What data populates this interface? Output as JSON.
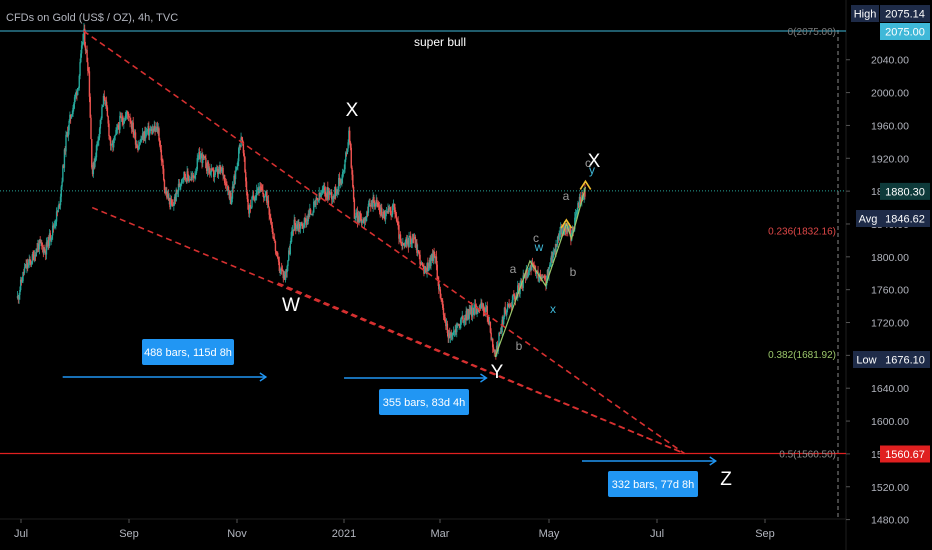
{
  "header": {
    "symbol_title": "CFDs on Gold (US$ / OZ), 4h, TVC"
  },
  "chart_data": {
    "type": "candlestick",
    "y_axis": {
      "ylim": [
        1465,
        2092
      ],
      "ticks": [
        2040,
        2000,
        1960,
        1920,
        1880,
        1840,
        1800,
        1760,
        1720,
        1680,
        1640,
        1600,
        1560,
        1520,
        1480
      ],
      "tick_labels": [
        "2040.00",
        "2000.00",
        "1960.00",
        "1920.00",
        "1880.00",
        "1840.00",
        "1800.00",
        "1760.00",
        "1720.00",
        "1680.00",
        "1640.00",
        "1600.00",
        "1560.00",
        "1520.00",
        "1480.00"
      ]
    },
    "x_axis": {
      "labels": [
        "Jul",
        "Sep",
        "Nov",
        "2021",
        "Mar",
        "May",
        "Jul",
        "Sep"
      ]
    },
    "price_series": [
      [
        "2020-06-29",
        1750
      ],
      [
        "2020-07-03",
        1785
      ],
      [
        "2020-07-07",
        1795
      ],
      [
        "2020-07-11",
        1815
      ],
      [
        "2020-07-15",
        1808
      ],
      [
        "2020-07-19",
        1832
      ],
      [
        "2020-07-23",
        1862
      ],
      [
        "2020-07-27",
        1945
      ],
      [
        "2020-07-30",
        1975
      ],
      [
        "2020-08-03",
        2010
      ],
      [
        "2020-08-06",
        2075
      ],
      [
        "2020-08-09",
        2025
      ],
      [
        "2020-08-11",
        1900
      ],
      [
        "2020-08-14",
        1940
      ],
      [
        "2020-08-18",
        1998
      ],
      [
        "2020-08-22",
        1930
      ],
      [
        "2020-08-27",
        1965
      ],
      [
        "2020-09-01",
        1975
      ],
      [
        "2020-09-06",
        1935
      ],
      [
        "2020-09-11",
        1952
      ],
      [
        "2020-09-18",
        1955
      ],
      [
        "2020-09-22",
        1880
      ],
      [
        "2020-09-26",
        1860
      ],
      [
        "2020-10-02",
        1900
      ],
      [
        "2020-10-08",
        1895
      ],
      [
        "2020-10-12",
        1925
      ],
      [
        "2020-10-19",
        1900
      ],
      [
        "2020-10-25",
        1905
      ],
      [
        "2020-10-30",
        1870
      ],
      [
        "2020-11-05",
        1950
      ],
      [
        "2020-11-09",
        1855
      ],
      [
        "2020-11-14",
        1885
      ],
      [
        "2020-11-20",
        1870
      ],
      [
        "2020-11-26",
        1790
      ],
      [
        "2020-11-30",
        1775
      ],
      [
        "2020-12-05",
        1840
      ],
      [
        "2020-12-10",
        1838
      ],
      [
        "2020-12-15",
        1855
      ],
      [
        "2020-12-22",
        1880
      ],
      [
        "2020-12-28",
        1875
      ],
      [
        "2021-01-03",
        1905
      ],
      [
        "2021-01-06",
        1955
      ],
      [
        "2021-01-09",
        1850
      ],
      [
        "2021-01-14",
        1845
      ],
      [
        "2021-01-20",
        1870
      ],
      [
        "2021-01-26",
        1850
      ],
      [
        "2021-02-01",
        1860
      ],
      [
        "2021-02-05",
        1810
      ],
      [
        "2021-02-12",
        1825
      ],
      [
        "2021-02-18",
        1780
      ],
      [
        "2021-02-24",
        1805
      ],
      [
        "2021-03-01",
        1730
      ],
      [
        "2021-03-05",
        1700
      ],
      [
        "2021-03-09",
        1715
      ],
      [
        "2021-03-15",
        1730
      ],
      [
        "2021-03-22",
        1740
      ],
      [
        "2021-03-26",
        1735
      ],
      [
        "2021-03-31",
        1678
      ],
      [
        "2021-04-05",
        1730
      ],
      [
        "2021-04-09",
        1745
      ],
      [
        "2021-04-15",
        1765
      ],
      [
        "2021-04-20",
        1790
      ],
      [
        "2021-04-24",
        1778
      ],
      [
        "2021-04-29",
        1770
      ],
      [
        "2021-05-03",
        1800
      ],
      [
        "2021-05-07",
        1830
      ],
      [
        "2021-05-11",
        1835
      ],
      [
        "2021-05-14",
        1825
      ],
      [
        "2021-05-18",
        1865
      ],
      [
        "2021-05-22",
        1880
      ]
    ],
    "overlay_labels": {
      "high_label": "High",
      "high_value": "2075.14",
      "tag_2075": "2075.00",
      "last_value": "1880.30",
      "avg_label": "Avg",
      "avg_value": "1846.62",
      "low_label": "Low",
      "low_value": "1676.10",
      "tag_1560": "1560.67"
    },
    "fib_levels": [
      {
        "label": "0(2075.00)",
        "price": 2075.0,
        "color": "#7c7c7c"
      },
      {
        "label": "0.236(1832.16)",
        "price": 1832.16,
        "color": "#e04848"
      },
      {
        "label": "0.382(1681.92)",
        "price": 1681.92,
        "color": "#9bc76b"
      },
      {
        "label": "0.5(1560.50)",
        "price": 1560.5,
        "color": "#8a8a8a"
      }
    ],
    "annotations": {
      "super_bull": "super bull",
      "wave_W": "W",
      "wave_X1": "X",
      "wave_Y": "Y",
      "wave_X2": "X",
      "wave_Z": "Z",
      "sub_a1": "a",
      "sub_b1": "b",
      "sub_c": "c",
      "sub_w": "w",
      "sub_x": "x",
      "sub_y": "y",
      "sub_a2": "a",
      "sub_b2": "b",
      "sub_c2": "c"
    },
    "measure_boxes": [
      {
        "text": "488 bars, 115d 8h"
      },
      {
        "text": "355 bars, 83d 4h"
      },
      {
        "text": "332 bars, 77d 8h"
      }
    ],
    "colors": {
      "bull": "#26a69a",
      "bear": "#ef5350",
      "trendline": "#d63030",
      "measure": "#2196f3",
      "tag_blue": "#15365f",
      "axis_text": "#b2b5be"
    }
  }
}
